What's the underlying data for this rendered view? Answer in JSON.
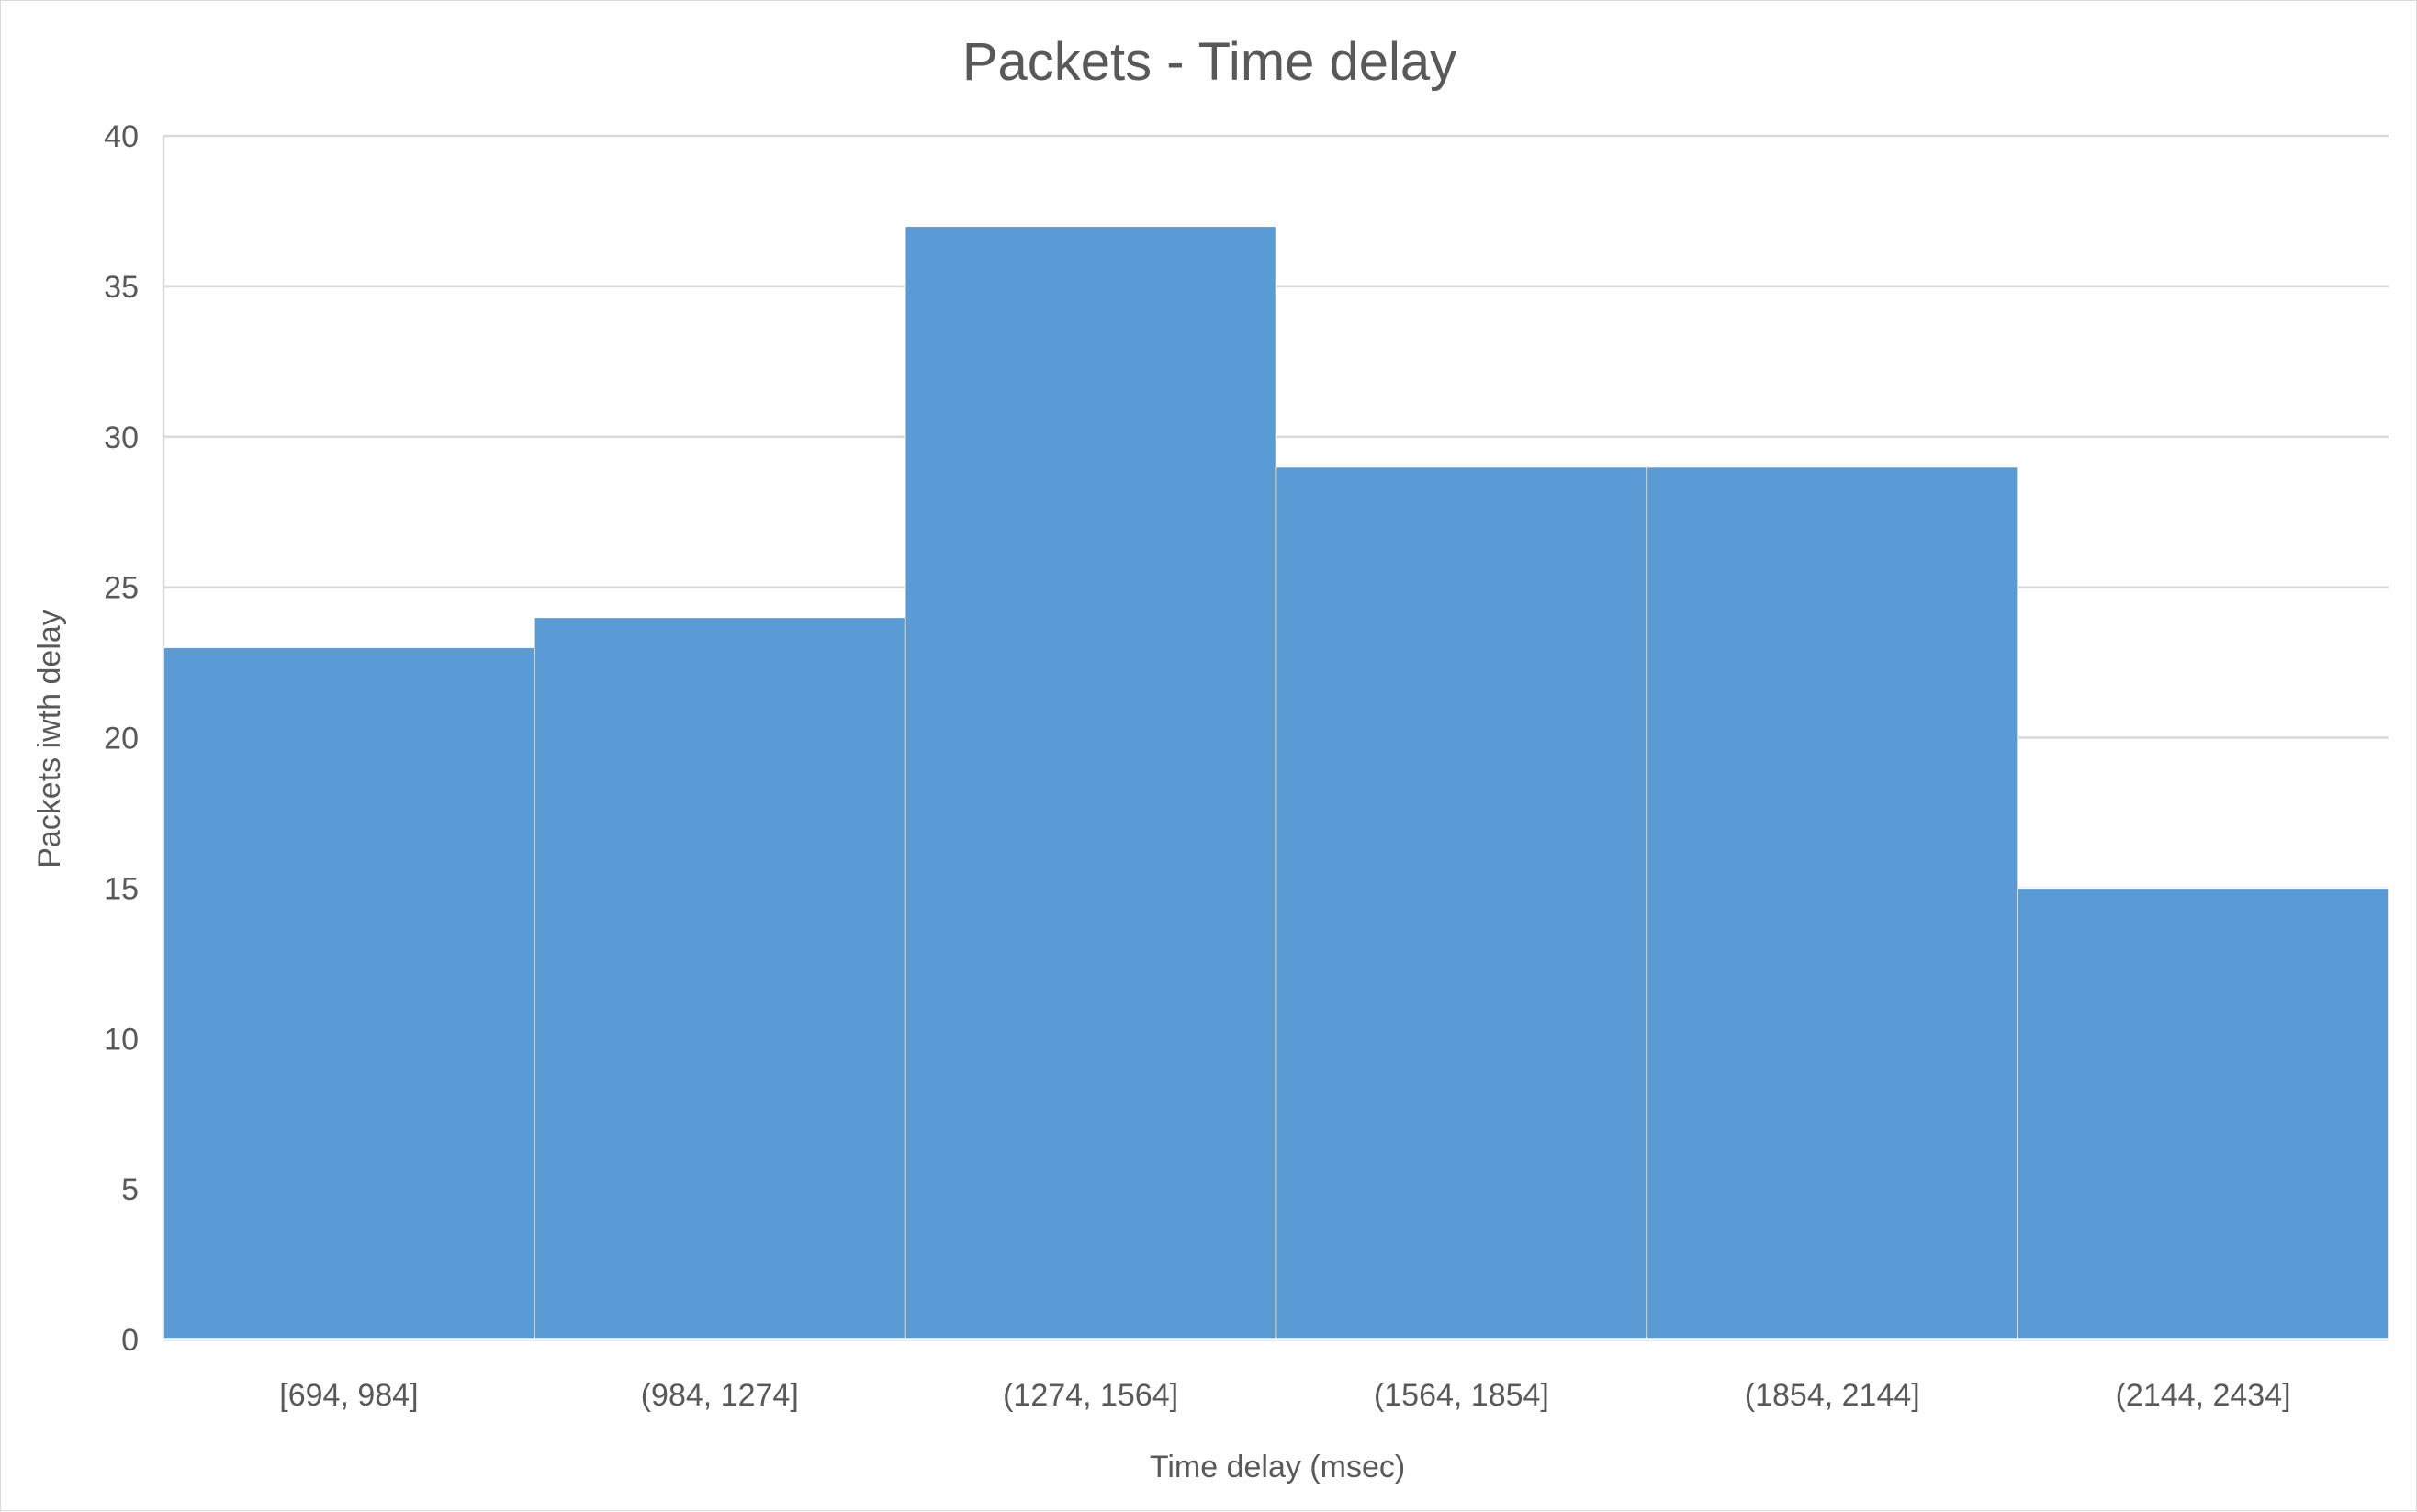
{
  "chart_data": {
    "type": "bar",
    "title": "Packets - Time delay",
    "xlabel": "Time delay (msec)",
    "ylabel": "Packets iwth delay",
    "categories": [
      "[694, 984]",
      "(984, 1274]",
      "(1274, 1564]",
      "(1564, 1854]",
      "(1854, 2144]",
      "(2144, 2434]"
    ],
    "values": [
      23,
      24,
      37,
      29,
      29,
      15
    ],
    "ylim": [
      0,
      40
    ],
    "yticks": [
      "0",
      "5",
      "10",
      "15",
      "20",
      "25",
      "30",
      "35",
      "40"
    ],
    "grid": true,
    "bar_color": "#5b9bd5",
    "grid_color": "#d9d9d9"
  }
}
